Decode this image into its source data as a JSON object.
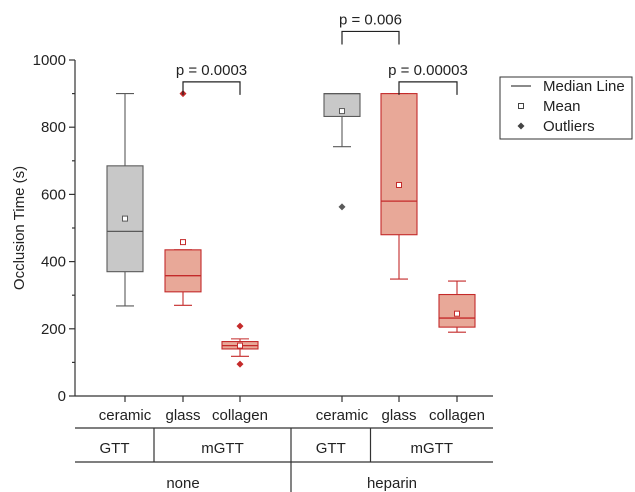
{
  "chart_data": {
    "type": "box",
    "ylabel": "Occlusion Time (s)",
    "ylim": [
      0,
      1000
    ],
    "yticks": [
      0,
      200,
      400,
      600,
      800,
      1000
    ],
    "grid": false,
    "legend_position": "top-right",
    "legend": [
      {
        "label": "Median Line",
        "marker": "line"
      },
      {
        "label": "Mean",
        "marker": "open-square"
      },
      {
        "label": "Outliers",
        "marker": "filled-diamond"
      }
    ],
    "categories": [
      "ceramic",
      "glass",
      "collagen",
      "ceramic",
      "glass",
      "collagen"
    ],
    "category_groups": [
      {
        "label": "GTT",
        "span": [
          0,
          0
        ]
      },
      {
        "label": "mGTT",
        "span": [
          1,
          2
        ]
      },
      {
        "label": "GTT",
        "span": [
          3,
          3
        ]
      },
      {
        "label": "mGTT",
        "span": [
          4,
          5
        ]
      }
    ],
    "treatment_groups": [
      {
        "label": "none",
        "span": [
          0,
          2
        ]
      },
      {
        "label": "heparin",
        "span": [
          3,
          5
        ]
      }
    ],
    "boxes": [
      {
        "category": "ceramic",
        "q1": 370,
        "median": 490,
        "q3": 685,
        "whisker_low": 268,
        "whisker_high": 900,
        "mean": 528,
        "outliers": [],
        "fill": "#c8c8c8",
        "stroke": "#5a5a5a",
        "mean_color": "#5a5a5a",
        "outlier_color": "#5a5a5a"
      },
      {
        "category": "glass",
        "q1": 310,
        "median": 358,
        "q3": 435,
        "whisker_low": 270,
        "whisker_high": 435,
        "mean": 458,
        "outliers": [
          900
        ],
        "fill": "#e8a898",
        "stroke": "#c42a2a",
        "mean_color": "#c42a2a",
        "outlier_color": "#c42a2a"
      },
      {
        "category": "collagen",
        "q1": 140,
        "median": 150,
        "q3": 162,
        "whisker_low": 118,
        "whisker_high": 170,
        "mean": 150,
        "outliers": [
          208,
          95
        ],
        "fill": "#e8a898",
        "stroke": "#c42a2a",
        "mean_color": "#c42a2a",
        "outlier_color": "#c42a2a"
      },
      {
        "category": "ceramic",
        "q1": 832,
        "median": 900,
        "q3": 900,
        "whisker_low": 742,
        "whisker_high": 900,
        "mean": 848,
        "outliers": [
          563
        ],
        "fill": "#c8c8c8",
        "stroke": "#5a5a5a",
        "mean_color": "#5a5a5a",
        "outlier_color": "#5a5a5a"
      },
      {
        "category": "glass",
        "q1": 480,
        "median": 580,
        "q3": 900,
        "whisker_low": 348,
        "whisker_high": 900,
        "mean": 628,
        "outliers": [],
        "fill": "#e8a898",
        "stroke": "#c42a2a",
        "mean_color": "#c42a2a",
        "outlier_color": "#c42a2a"
      },
      {
        "category": "collagen",
        "q1": 205,
        "median": 232,
        "q3": 302,
        "whisker_low": 190,
        "whisker_high": 342,
        "mean": 245,
        "outliers": [],
        "fill": "#e8a898",
        "stroke": "#c42a2a",
        "mean_color": "#c42a2a",
        "outlier_color": "#c42a2a"
      }
    ],
    "significance": [
      {
        "label": "p = 0.0003",
        "from": 1,
        "to": 2,
        "y": 935
      },
      {
        "label": "p = 0.006",
        "from": 3,
        "to": 4,
        "y": 1085
      },
      {
        "label": "p = 0.00003",
        "from": 4,
        "to": 5,
        "y": 935
      }
    ]
  }
}
